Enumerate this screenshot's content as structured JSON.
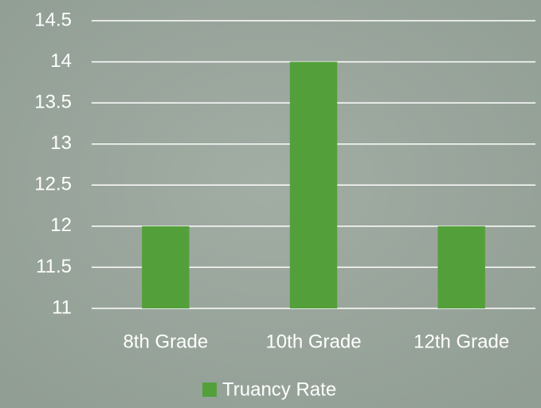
{
  "chart_data": {
    "type": "bar",
    "categories": [
      "8th Grade",
      "10th Grade",
      "12th Grade"
    ],
    "series": [
      {
        "name": "Truancy Rate",
        "color": "#53a03b",
        "values": [
          12,
          14,
          12
        ]
      }
    ],
    "ylim": [
      11,
      14.5
    ],
    "yticks": [
      11,
      11.5,
      12,
      12.5,
      13,
      13.5,
      14,
      14.5
    ],
    "grid": true,
    "legend": "bottom"
  }
}
